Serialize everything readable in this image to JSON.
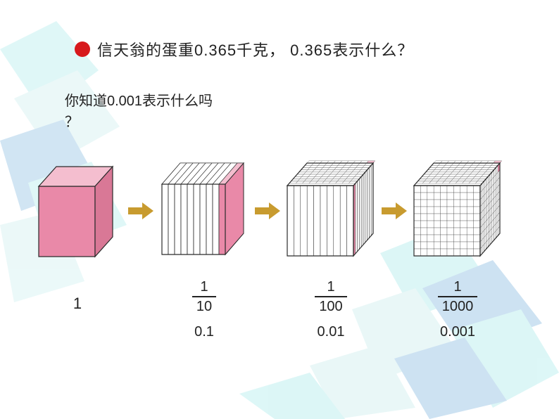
{
  "colors": {
    "red_dot": "#d7191c",
    "arrow": "#c89b2f",
    "cube_fill": "#e989a8",
    "cube_fill_light": "#f4becf",
    "cube_face_white": "#ffffff",
    "cube_stroke": "#2b2b2b",
    "bg_cyan": "#8fe3e3",
    "bg_blue": "#5ea3d6",
    "bg_teal": "#b8e8e8"
  },
  "question": {
    "text": "信天翁的蛋重0.365千克， 0.365表示什么？"
  },
  "subquestion": {
    "line1": "你知道0.001表示什么吗",
    "line2": "？"
  },
  "items": [
    {
      "type": "whole",
      "whole_label": "1",
      "fraction_num": "",
      "fraction_den": "",
      "decimal": ""
    },
    {
      "type": "tenth",
      "whole_label": "",
      "fraction_num": "1",
      "fraction_den": "10",
      "decimal": "0.1"
    },
    {
      "type": "hundredth",
      "whole_label": "",
      "fraction_num": "1",
      "fraction_den": "100",
      "decimal": "0.01"
    },
    {
      "type": "thousandth",
      "whole_label": "",
      "fraction_num": "1",
      "fraction_den": "1000",
      "decimal": "0.001"
    }
  ]
}
